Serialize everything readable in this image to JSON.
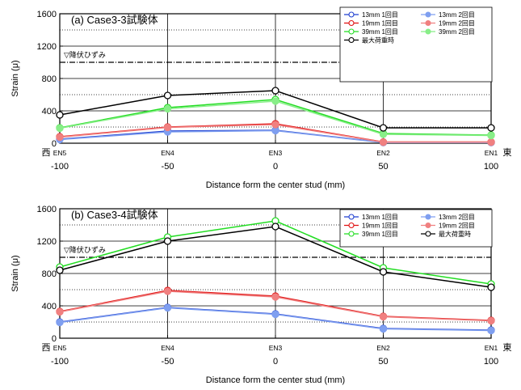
{
  "colors": {
    "black": "#000000",
    "blue": "#1f3fd0",
    "light_blue": "#7f9ff0",
    "red": "#e01010",
    "salmon": "#f08080",
    "green": "#22dd22",
    "light_green": "#88ee88"
  },
  "chart_data": [
    {
      "type": "line",
      "title": "(a) Case3-3試験体",
      "xlabel": "Distance form the center stud (mm)",
      "ylabel": "Strain (μ)",
      "xlim": [
        -100,
        100
      ],
      "ylim": [
        0,
        1600
      ],
      "x_ticks": [
        -100,
        -50,
        0,
        50,
        100
      ],
      "y_ticks": [
        0,
        400,
        800,
        1200,
        1600
      ],
      "grid": true,
      "legend_position": "top-right",
      "x": [
        -100,
        -50,
        0,
        50,
        100
      ],
      "point_labels": [
        "EN5",
        "EN4",
        "EN3",
        "EN2",
        "EN1"
      ],
      "left_side_label": "西",
      "right_side_label": "東",
      "yield_line": {
        "value": 1000,
        "label": "▽降伏ひずみ"
      },
      "series": [
        {
          "name": "13mm 1回目",
          "color_key": "blue",
          "filled": false,
          "values": [
            50,
            150,
            160,
            10,
            10
          ]
        },
        {
          "name": "13mm 2回目",
          "color_key": "light_blue",
          "filled": true,
          "values": [
            45,
            140,
            155,
            8,
            8
          ]
        },
        {
          "name": "19mm 1回目",
          "color_key": "red",
          "filled": false,
          "values": [
            80,
            200,
            240,
            15,
            15
          ]
        },
        {
          "name": "19mm 2回目",
          "color_key": "salmon",
          "filled": true,
          "values": [
            75,
            195,
            230,
            12,
            12
          ]
        },
        {
          "name": "39mm 1回目",
          "color_key": "green",
          "filled": false,
          "values": [
            190,
            440,
            540,
            120,
            100
          ]
        },
        {
          "name": "39mm 2回目",
          "color_key": "light_green",
          "filled": true,
          "values": [
            185,
            425,
            520,
            110,
            95
          ]
        },
        {
          "name": "最大荷重時",
          "color_key": "black",
          "filled": false,
          "values": [
            350,
            590,
            650,
            190,
            190
          ]
        }
      ]
    },
    {
      "type": "line",
      "title": "(b) Case3-4試験体",
      "xlabel": "Distance form the center stud (mm)",
      "ylabel": "Strain (μ)",
      "xlim": [
        -100,
        100
      ],
      "ylim": [
        0,
        1600
      ],
      "x_ticks": [
        -100,
        -50,
        0,
        50,
        100
      ],
      "y_ticks": [
        0,
        400,
        800,
        1200,
        1600
      ],
      "grid": true,
      "legend_position": "top-right",
      "x": [
        -100,
        -50,
        0,
        50,
        100
      ],
      "point_labels": [
        "EN5",
        "EN4",
        "EN3",
        "EN2",
        "EN1"
      ],
      "left_side_label": "西",
      "right_side_label": "東",
      "yield_line": {
        "value": 1000,
        "label": "▽降伏ひずみ"
      },
      "series": [
        {
          "name": "13mm 1回目",
          "color_key": "blue",
          "filled": false,
          "values": [
            200,
            380,
            300,
            120,
            100
          ]
        },
        {
          "name": "13mm 2回目",
          "color_key": "light_blue",
          "filled": true,
          "values": [
            195,
            375,
            295,
            115,
            95
          ]
        },
        {
          "name": "19mm 1回目",
          "color_key": "red",
          "filled": false,
          "values": [
            330,
            590,
            520,
            270,
            220
          ]
        },
        {
          "name": "19mm 2回目",
          "color_key": "salmon",
          "filled": true,
          "values": [
            325,
            580,
            510,
            265,
            215
          ]
        },
        {
          "name": "39mm 1回目",
          "color_key": "green",
          "filled": false,
          "values": [
            880,
            1250,
            1450,
            870,
            670
          ]
        },
        {
          "name": "最大荷重時",
          "color_key": "black",
          "filled": false,
          "values": [
            840,
            1200,
            1380,
            820,
            630
          ]
        }
      ]
    }
  ]
}
